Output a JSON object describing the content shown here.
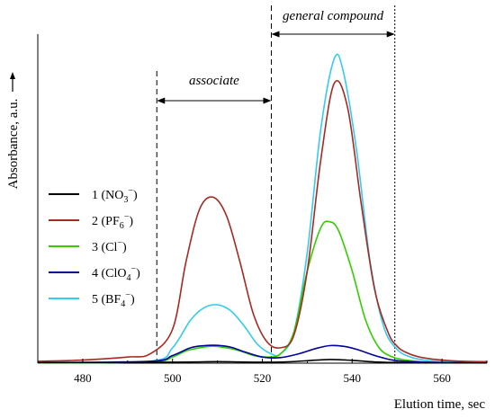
{
  "chart_data": {
    "type": "line",
    "xlabel": "Elution time, sec",
    "ylabel": "Absorbance, a.u.",
    "xlim": [
      470,
      570
    ],
    "ylim": [
      0,
      1.0
    ],
    "x_ticks": [
      480,
      500,
      520,
      540,
      560
    ],
    "grid": false,
    "legend_position": "left",
    "series": [
      {
        "name": "1 (NO3⁻)",
        "label_main": "1 (NO",
        "label_sub": "3",
        "label_sup": "−",
        "label_end": ")",
        "color": "#000000",
        "x": [
          470,
          490,
          500,
          505,
          510,
          515,
          520,
          525,
          530,
          535,
          540,
          545,
          550,
          555,
          560,
          570
        ],
        "y": [
          0.002,
          0.002,
          0.003,
          0.004,
          0.005,
          0.004,
          0.003,
          0.004,
          0.008,
          0.012,
          0.009,
          0.004,
          0.002,
          0.001,
          0.001,
          0.001
        ]
      },
      {
        "name": "2 (PF6⁻)",
        "label_main": "2 (PF",
        "label_sub": "6",
        "label_sup": "−",
        "label_end": ")",
        "color": "#a52a22",
        "x": [
          470,
          480,
          490,
          495,
          500,
          503,
          506,
          509,
          512,
          515,
          518,
          521,
          524,
          527,
          530,
          533,
          536,
          539,
          542,
          545,
          548,
          550,
          552,
          555,
          560,
          565,
          570
        ],
        "y": [
          0.006,
          0.01,
          0.02,
          0.03,
          0.11,
          0.33,
          0.5,
          0.54,
          0.48,
          0.33,
          0.16,
          0.07,
          0.05,
          0.09,
          0.3,
          0.66,
          0.91,
          0.83,
          0.52,
          0.24,
          0.1,
          0.055,
          0.035,
          0.02,
          0.01,
          0.006,
          0.005
        ]
      },
      {
        "name": "3 (Cl⁻)",
        "label_main": "3 (Cl",
        "label_sub": "",
        "label_sup": "−",
        "label_end": ")",
        "color": "#33cc00",
        "x": [
          470,
          495,
          500,
          503,
          506,
          509,
          512,
          515,
          518,
          521,
          524,
          527,
          530,
          533,
          535,
          537,
          540,
          543,
          546,
          549,
          552,
          556,
          560,
          570
        ],
        "y": [
          0.001,
          0.004,
          0.02,
          0.04,
          0.05,
          0.055,
          0.05,
          0.04,
          0.025,
          0.02,
          0.03,
          0.1,
          0.3,
          0.44,
          0.46,
          0.43,
          0.3,
          0.14,
          0.05,
          0.02,
          0.01,
          0.004,
          0.002,
          0.001
        ]
      },
      {
        "name": "4 (ClO4⁻)",
        "label_main": "4 (ClO",
        "label_sub": "4",
        "label_sup": "−",
        "label_end": ")",
        "color": "#000099",
        "x": [
          470,
          495,
          500,
          504,
          507,
          510,
          513,
          516,
          520,
          524,
          528,
          532,
          535,
          538,
          541,
          545,
          549,
          553,
          560,
          570
        ],
        "y": [
          0.002,
          0.006,
          0.025,
          0.05,
          0.057,
          0.058,
          0.052,
          0.037,
          0.02,
          0.018,
          0.03,
          0.048,
          0.057,
          0.055,
          0.045,
          0.025,
          0.01,
          0.005,
          0.002,
          0.002
        ]
      },
      {
        "name": "5 (BF4⁻)",
        "label_main": "5 (BF",
        "label_sub": "4",
        "label_sup": "−",
        "label_end": ")",
        "color": "#33ccee",
        "x": [
          470,
          495,
          500,
          504,
          507,
          510,
          513,
          516,
          519,
          522,
          524,
          527,
          530,
          533,
          536,
          538,
          541,
          544,
          547,
          550,
          553,
          556,
          560,
          565,
          570
        ],
        "y": [
          0.002,
          0.006,
          0.05,
          0.14,
          0.18,
          0.19,
          0.17,
          0.12,
          0.06,
          0.03,
          0.03,
          0.1,
          0.36,
          0.76,
          0.99,
          0.95,
          0.69,
          0.33,
          0.12,
          0.045,
          0.02,
          0.01,
          0.005,
          0.003,
          0.002
        ]
      }
    ],
    "annotations": [
      {
        "text": "associate",
        "x_from": 496.5,
        "x_to": 522
      },
      {
        "text": "general compound",
        "x_from": 522,
        "x_to": 549.5
      }
    ],
    "vlines": [
      {
        "x": 496.5,
        "style": "dashed"
      },
      {
        "x": 522,
        "style": "dashed"
      },
      {
        "x": 549.5,
        "style": "dotted"
      }
    ]
  }
}
